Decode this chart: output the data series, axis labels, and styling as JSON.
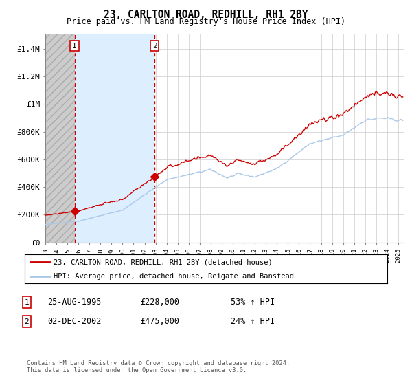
{
  "title": "23, CARLTON ROAD, REDHILL, RH1 2BY",
  "subtitle": "Price paid vs. HM Land Registry's House Price Index (HPI)",
  "legend_line1": "23, CARLTON ROAD, REDHILL, RH1 2BY (detached house)",
  "legend_line2": "HPI: Average price, detached house, Reigate and Banstead",
  "table_rows": [
    {
      "num": "1",
      "date": "25-AUG-1995",
      "price": "£228,000",
      "change": "53% ↑ HPI"
    },
    {
      "num": "2",
      "date": "02-DEC-2002",
      "price": "£475,000",
      "change": "24% ↑ HPI"
    }
  ],
  "footnote": "Contains HM Land Registry data © Crown copyright and database right 2024.\nThis data is licensed under the Open Government Licence v3.0.",
  "sale1_year": 1995.65,
  "sale2_year": 2002.92,
  "sale1_price": 228000,
  "sale2_price": 475000,
  "hpi_color": "#aac8e8",
  "price_color": "#cc0000",
  "shade_color": "#ddeeff",
  "background_color": "#ffffff",
  "ylim": [
    0,
    1500000
  ],
  "xlim_start": 1993.0,
  "xlim_end": 2025.5,
  "yticks": [
    0,
    200000,
    400000,
    600000,
    800000,
    1000000,
    1200000,
    1400000
  ],
  "ylabels": [
    "£0",
    "£200K",
    "£400K",
    "£600K",
    "£800K",
    "£1M",
    "£1.2M",
    "£1.4M"
  ]
}
